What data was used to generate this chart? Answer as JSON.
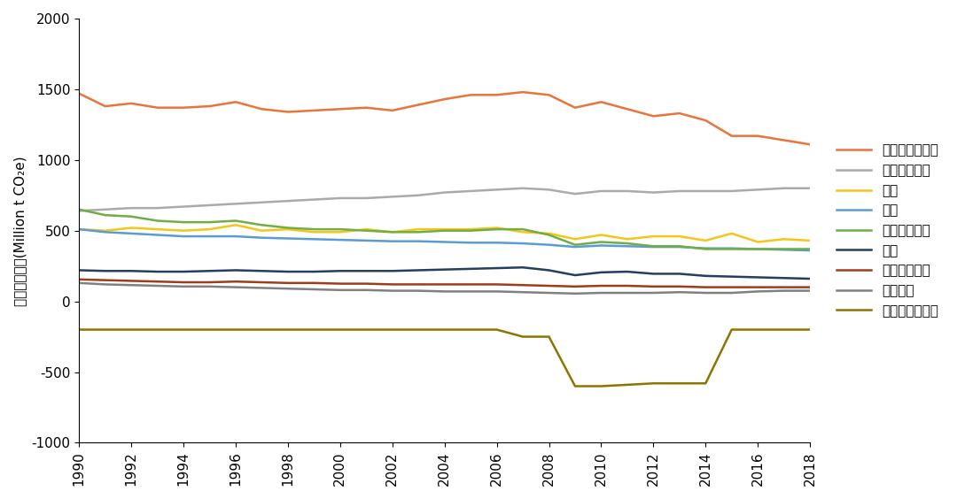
{
  "years": [
    1990,
    1991,
    1992,
    1993,
    1994,
    1995,
    1996,
    1997,
    1998,
    1999,
    2000,
    2001,
    2002,
    2003,
    2004,
    2005,
    2006,
    2007,
    2008,
    2009,
    2010,
    2011,
    2012,
    2013,
    2014,
    2015,
    2016,
    2017,
    2018
  ],
  "series": [
    {
      "name": "电力与供热部门",
      "color": "#E8743B",
      "linewidth": 1.8,
      "data": [
        1470,
        1380,
        1400,
        1370,
        1370,
        1380,
        1410,
        1360,
        1340,
        1350,
        1360,
        1370,
        1350,
        1390,
        1430,
        1460,
        1460,
        1480,
        1460,
        1370,
        1410,
        1360,
        1310,
        1330,
        1280,
        1170,
        1170,
        1140,
        1110
      ]
    },
    {
      "name": "交通运输部门",
      "color": "#AAAAAA",
      "linewidth": 1.8,
      "data": [
        640,
        650,
        660,
        660,
        670,
        680,
        690,
        700,
        710,
        720,
        730,
        730,
        740,
        750,
        770,
        780,
        790,
        800,
        790,
        760,
        780,
        780,
        770,
        780,
        780,
        780,
        790,
        800,
        800
      ]
    },
    {
      "name": "住宅",
      "color": "#F5C518",
      "linewidth": 1.8,
      "data": [
        510,
        500,
        520,
        510,
        500,
        510,
        540,
        500,
        510,
        490,
        490,
        510,
        490,
        510,
        510,
        510,
        520,
        490,
        480,
        440,
        470,
        440,
        460,
        460,
        430,
        480,
        420,
        440,
        430
      ]
    },
    {
      "name": "农业",
      "color": "#5B9BD5",
      "linewidth": 1.8,
      "data": [
        510,
        490,
        480,
        470,
        460,
        460,
        460,
        450,
        445,
        440,
        435,
        430,
        425,
        425,
        420,
        415,
        415,
        410,
        400,
        385,
        395,
        390,
        385,
        385,
        375,
        375,
        370,
        365,
        360
      ]
    },
    {
      "name": "制造与建筑业",
      "color": "#70AD47",
      "linewidth": 1.8,
      "data": [
        650,
        610,
        600,
        570,
        560,
        560,
        570,
        540,
        520,
        510,
        510,
        500,
        490,
        490,
        500,
        500,
        510,
        510,
        470,
        400,
        420,
        410,
        390,
        390,
        370,
        370,
        370,
        370,
        370
      ]
    },
    {
      "name": "工业",
      "color": "#243F60",
      "linewidth": 1.8,
      "data": [
        220,
        215,
        215,
        210,
        210,
        215,
        220,
        215,
        210,
        210,
        215,
        215,
        215,
        220,
        225,
        230,
        235,
        240,
        220,
        185,
        205,
        210,
        195,
        195,
        180,
        175,
        170,
        165,
        160
      ]
    },
    {
      "name": "其他燃料燃烧",
      "color": "#9E3D1D",
      "linewidth": 1.8,
      "data": [
        155,
        150,
        145,
        140,
        135,
        135,
        140,
        135,
        130,
        130,
        125,
        125,
        120,
        120,
        120,
        120,
        120,
        115,
        110,
        105,
        110,
        110,
        105,
        105,
        100,
        100,
        100,
        100,
        100
      ]
    },
    {
      "name": "逸散排放",
      "color": "#808080",
      "linewidth": 1.8,
      "data": [
        130,
        120,
        115,
        110,
        105,
        105,
        100,
        95,
        90,
        85,
        80,
        80,
        75,
        75,
        70,
        70,
        70,
        65,
        60,
        55,
        60,
        60,
        60,
        65,
        60,
        60,
        70,
        75,
        75
      ]
    },
    {
      "name": "土地利用与林业",
      "color": "#8B7500",
      "linewidth": 1.8,
      "data": [
        -200,
        -200,
        -200,
        -200,
        -200,
        -200,
        -200,
        -200,
        -200,
        -200,
        -200,
        -200,
        -200,
        -200,
        -200,
        -200,
        -200,
        -250,
        -250,
        -600,
        -600,
        -590,
        -580,
        -580,
        -580,
        -200,
        -200,
        -200,
        -200
      ]
    }
  ],
  "xlim": [
    1990,
    2018
  ],
  "ylim": [
    -1000,
    2000
  ],
  "yticks": [
    -1000,
    -500,
    0,
    500,
    1000,
    1500,
    2000
  ],
  "xticks": [
    1990,
    1992,
    1994,
    1996,
    1998,
    2000,
    2002,
    2004,
    2006,
    2008,
    2010,
    2012,
    2014,
    2016,
    2018
  ],
  "ylabel": "各部门碳排放(Million t CO₂e)",
  "background_color": "#FFFFFF",
  "legend_fontsize": 11,
  "axis_fontsize": 11
}
